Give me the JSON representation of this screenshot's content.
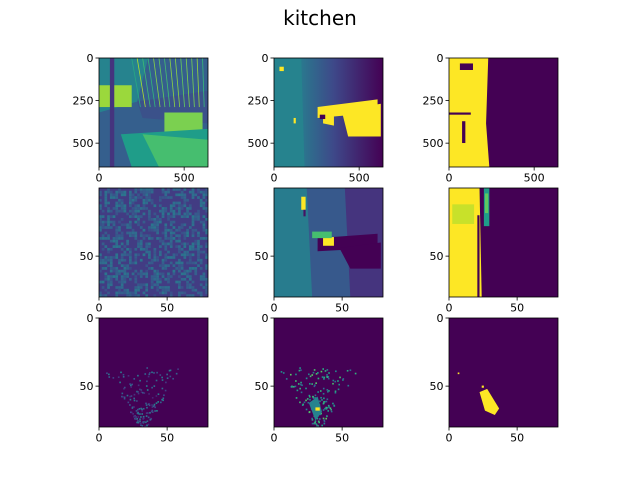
{
  "figure": {
    "title": "kitchen"
  },
  "colors": {
    "viridis_low": "#440154",
    "viridis_mid": "#21918c",
    "viridis_high": "#fde725",
    "axis": "#000000"
  },
  "chart_data": [
    {
      "type": "heatmap",
      "panel": "r1c1",
      "image": "rgb-channel",
      "xlim": [
        0,
        640
      ],
      "ylim": [
        640,
        0
      ],
      "xticks": [
        "0",
        "500"
      ],
      "yticks": [
        "0",
        "250",
        "500"
      ]
    },
    {
      "type": "heatmap",
      "panel": "r1c2",
      "image": "depth-map",
      "xlim": [
        0,
        640
      ],
      "ylim": [
        640,
        0
      ],
      "xticks": [
        "0",
        "500"
      ],
      "yticks": [
        "0",
        "250",
        "500"
      ]
    },
    {
      "type": "heatmap",
      "panel": "r1c3",
      "image": "binary-mask",
      "xlim": [
        0,
        640
      ],
      "ylim": [
        640,
        0
      ],
      "xticks": [
        "0",
        "500"
      ],
      "yticks": [
        "0",
        "250",
        "500"
      ]
    },
    {
      "type": "heatmap",
      "panel": "r2c1",
      "image": "feature-map",
      "xlim": [
        0,
        80
      ],
      "ylim": [
        80,
        0
      ],
      "xticks": [
        "0",
        "50"
      ],
      "yticks": [
        "50"
      ]
    },
    {
      "type": "heatmap",
      "panel": "r2c2",
      "image": "downsampled-depth",
      "xlim": [
        0,
        80
      ],
      "ylim": [
        80,
        0
      ],
      "xticks": [
        "0",
        "50"
      ],
      "yticks": [
        "50"
      ]
    },
    {
      "type": "heatmap",
      "panel": "r2c3",
      "image": "downsampled-mask",
      "xlim": [
        0,
        80
      ],
      "ylim": [
        80,
        0
      ],
      "xticks": [
        "0",
        "50"
      ],
      "yticks": [
        "50"
      ]
    },
    {
      "type": "heatmap",
      "panel": "r3c1",
      "image": "sparse-points",
      "xlim": [
        0,
        80
      ],
      "ylim": [
        80,
        0
      ],
      "xticks": [
        "0",
        "50"
      ],
      "yticks": [
        "0",
        "50"
      ]
    },
    {
      "type": "heatmap",
      "panel": "r3c2",
      "image": "sparse-depth",
      "xlim": [
        0,
        80
      ],
      "ylim": [
        80,
        0
      ],
      "xticks": [
        "0",
        "50"
      ],
      "yticks": [
        "0",
        "50"
      ]
    },
    {
      "type": "heatmap",
      "panel": "r3c3",
      "image": "sparse-mask",
      "xlim": [
        0,
        80
      ],
      "ylim": [
        80,
        0
      ],
      "xticks": [
        "0",
        "50"
      ],
      "yticks": [
        "0",
        "50"
      ]
    }
  ]
}
